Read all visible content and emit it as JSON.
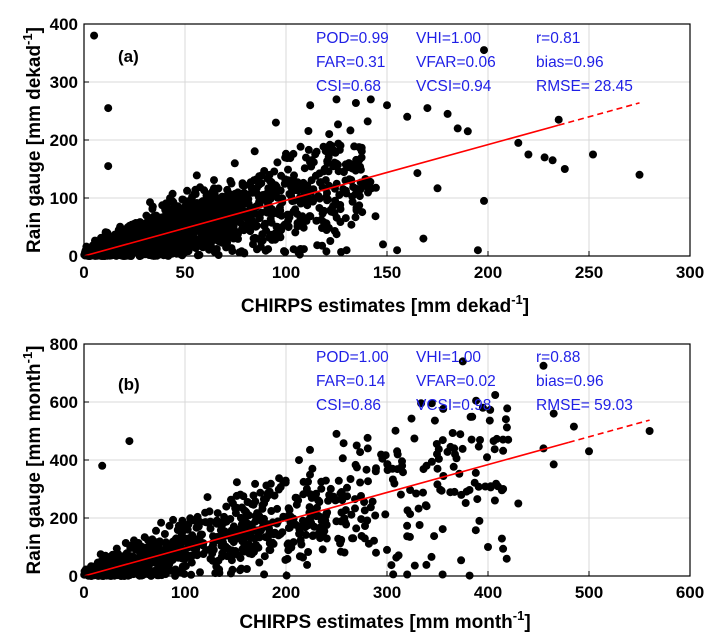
{
  "colors": {
    "points": "#000000",
    "fit": "#ff0000",
    "stats": "#1f1fe6",
    "grid": "#d9d9d9"
  },
  "chart_data": [
    {
      "type": "scatter",
      "panel_label": "(a)",
      "xlabel": "CHIRPS estimates [mm dekad",
      "xlabel_sup": "-1",
      "xlabel_end": "]",
      "ylabel": "Rain gauge [mm dekad",
      "ylabel_sup": "-1",
      "ylabel_end": "]",
      "xlim": [
        0,
        300
      ],
      "ylim": [
        0,
        400
      ],
      "xticks": [
        "0",
        "50",
        "100",
        "150",
        "200",
        "250",
        "300"
      ],
      "yticks": [
        "0",
        "100",
        "200",
        "300",
        "400"
      ],
      "grid": true,
      "fit_line": {
        "slope": 0.96,
        "intercept": 0,
        "solid_to_x": 235,
        "dashed_to_x": 275
      },
      "stats": [
        [
          "POD=0.99",
          "VHI=1.00",
          "r=0.81"
        ],
        [
          "FAR=0.31",
          "VFAR=0.06",
          "bias=0.96"
        ],
        [
          "CSI=0.68",
          "VCSI=0.94",
          "RMSE= 28.45"
        ]
      ],
      "outliers": [
        [
          5,
          380
        ],
        [
          12,
          255
        ],
        [
          12,
          155
        ],
        [
          198,
          355
        ],
        [
          198,
          95
        ],
        [
          215,
          195
        ],
        [
          220,
          175
        ],
        [
          228,
          170
        ],
        [
          232,
          165
        ],
        [
          235,
          235
        ],
        [
          238,
          150
        ],
        [
          252,
          175
        ],
        [
          275,
          140
        ],
        [
          150,
          260
        ],
        [
          142,
          270
        ],
        [
          125,
          270
        ],
        [
          160,
          240
        ],
        [
          170,
          255
        ],
        [
          180,
          245
        ],
        [
          185,
          220
        ],
        [
          190,
          215
        ],
        [
          155,
          10
        ],
        [
          148,
          20
        ],
        [
          168,
          30
        ],
        [
          195,
          10
        ],
        [
          130,
          10
        ],
        [
          112,
          260
        ],
        [
          95,
          230
        ]
      ]
    },
    {
      "type": "scatter",
      "panel_label": "(b)",
      "xlabel": "CHIRPS estimates [mm month",
      "xlabel_sup": "-1",
      "xlabel_end": "]",
      "ylabel": "Rain gauge [mm month",
      "ylabel_sup": "-1",
      "ylabel_end": "]",
      "xlim": [
        0,
        600
      ],
      "ylim": [
        0,
        800
      ],
      "xticks": [
        "0",
        "100",
        "200",
        "300",
        "400",
        "500",
        "600"
      ],
      "yticks": [
        "0",
        "200",
        "400",
        "600",
        "800"
      ],
      "grid": true,
      "fit_line": {
        "slope": 0.96,
        "intercept": 0,
        "solid_to_x": 480,
        "dashed_to_x": 560
      },
      "stats": [
        [
          "POD=1.00",
          "VHI=1.00",
          "r=0.88"
        ],
        [
          "FAR=0.14",
          "VFAR=0.02",
          "bias=0.96"
        ],
        [
          "CSI=0.86",
          "VCSI=0.98",
          "RMSE= 59.03"
        ]
      ],
      "outliers": [
        [
          18,
          380
        ],
        [
          45,
          465
        ],
        [
          375,
          740
        ],
        [
          455,
          725
        ],
        [
          395,
          580
        ],
        [
          485,
          515
        ],
        [
          560,
          500
        ],
        [
          500,
          430
        ],
        [
          465,
          385
        ],
        [
          455,
          440
        ],
        [
          430,
          250
        ],
        [
          415,
          300
        ],
        [
          400,
          100
        ],
        [
          355,
          5
        ],
        [
          320,
          5
        ],
        [
          300,
          90
        ],
        [
          130,
          10
        ],
        [
          90,
          10
        ],
        [
          270,
          450
        ],
        [
          250,
          490
        ],
        [
          350,
          370
        ],
        [
          310,
          430
        ],
        [
          420,
          470
        ],
        [
          465,
          560
        ]
      ]
    }
  ]
}
